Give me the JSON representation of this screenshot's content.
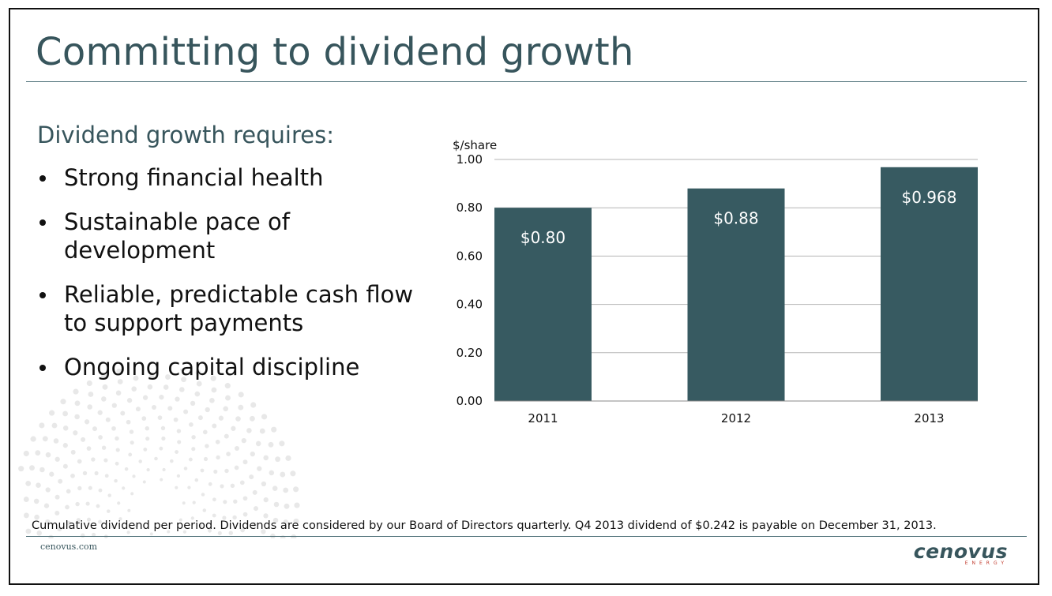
{
  "slide": {
    "title": "Committing to dividend growth",
    "intro": "Dividend growth requires:",
    "bullets": [
      "Strong financial health",
      "Sustainable pace of development",
      "Reliable, predictable cash flow to support payments",
      "Ongoing capital discipline"
    ],
    "footnote": "Cumulative dividend per period. Dividends are considered by our Board of Directors quarterly. Q4 2013 dividend of $0.242 is payable on December 31, 2013.",
    "website": "cenovus.com",
    "logo": {
      "word": "cenovus",
      "sub": "ENERGY"
    }
  },
  "colors": {
    "title": "#37555c",
    "bar": "#375a61",
    "gridline": "#b5b5b5",
    "logo_accent": "#c0392b"
  },
  "chart_data": {
    "type": "bar",
    "title": "",
    "xlabel": "",
    "ylabel": "$/share",
    "categories": [
      "2011",
      "2012",
      "2013"
    ],
    "values": [
      0.8,
      0.88,
      0.968
    ],
    "data_labels": [
      "$0.80",
      "$0.88",
      "$0.968"
    ],
    "ylim": [
      0,
      1.0
    ],
    "yticks": [
      "0.00",
      "0.20",
      "0.40",
      "0.60",
      "0.80",
      "1.00"
    ],
    "ytick_values": [
      0,
      0.2,
      0.4,
      0.6,
      0.8,
      1.0
    ],
    "grid": true,
    "legend": "none"
  }
}
